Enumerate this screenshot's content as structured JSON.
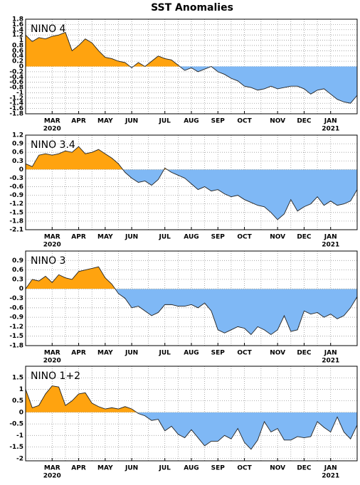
{
  "title": "SST Anomalies",
  "chart_data": [
    {
      "type": "area",
      "label": "NINO 4",
      "categories": [
        null,
        null,
        null,
        null,
        "MAR",
        null,
        null,
        null,
        "APR",
        null,
        null,
        null,
        "MAY",
        null,
        null,
        null,
        "JUN",
        null,
        null,
        null,
        null,
        "JUL",
        null,
        null,
        null,
        "AUG",
        null,
        null,
        null,
        "SEP",
        null,
        null,
        null,
        "OCT",
        null,
        null,
        null,
        null,
        "NOV",
        null,
        null,
        null,
        "DEC",
        null,
        null,
        null,
        "JAN",
        null,
        null,
        null,
        null
      ],
      "category_years": [
        null,
        null,
        null,
        null,
        "2020",
        null,
        null,
        null,
        null,
        null,
        null,
        null,
        null,
        null,
        null,
        null,
        null,
        null,
        null,
        null,
        null,
        null,
        null,
        null,
        null,
        null,
        null,
        null,
        null,
        null,
        null,
        null,
        null,
        null,
        null,
        null,
        null,
        null,
        null,
        null,
        null,
        null,
        null,
        null,
        null,
        null,
        "2021",
        null,
        null,
        null,
        null
      ],
      "values": [
        1.2,
        0.95,
        1.1,
        1.05,
        1.15,
        1.2,
        1.3,
        0.6,
        0.8,
        1.05,
        0.9,
        0.6,
        0.35,
        0.3,
        0.2,
        0.15,
        -0.05,
        0.15,
        0.0,
        0.2,
        0.4,
        0.3,
        0.25,
        0.05,
        -0.15,
        -0.05,
        -0.2,
        -0.1,
        0.0,
        -0.2,
        -0.3,
        -0.45,
        -0.55,
        -0.75,
        -0.8,
        -0.9,
        -0.85,
        -0.75,
        -0.85,
        -0.8,
        -0.75,
        -0.75,
        -0.85,
        -1.05,
        -0.9,
        -0.85,
        -1.05,
        -1.25,
        -1.35,
        -1.4,
        -1.1
      ],
      "ylim": [
        -1.8,
        1.8
      ],
      "yticks": [
        -1.8,
        -1.6,
        -1.4,
        -1.2,
        -1,
        -0.8,
        -0.6,
        -0.4,
        -0.2,
        0,
        0.2,
        0.4,
        0.6,
        0.8,
        1,
        1.2,
        1.4,
        1.6,
        1.8
      ],
      "positive_color": "#ffa30f",
      "negative_color": "#7fb8f5",
      "grid": true
    },
    {
      "type": "area",
      "label": "NINO 3.4",
      "categories": [
        null,
        null,
        null,
        null,
        "MAR",
        null,
        null,
        null,
        "APR",
        null,
        null,
        null,
        "MAY",
        null,
        null,
        null,
        "JUN",
        null,
        null,
        null,
        null,
        "JUL",
        null,
        null,
        null,
        "AUG",
        null,
        null,
        null,
        "SEP",
        null,
        null,
        null,
        "OCT",
        null,
        null,
        null,
        null,
        "NOV",
        null,
        null,
        null,
        "DEC",
        null,
        null,
        null,
        "JAN",
        null,
        null,
        null,
        null
      ],
      "category_years": [
        null,
        null,
        null,
        null,
        "2020",
        null,
        null,
        null,
        null,
        null,
        null,
        null,
        null,
        null,
        null,
        null,
        null,
        null,
        null,
        null,
        null,
        null,
        null,
        null,
        null,
        null,
        null,
        null,
        null,
        null,
        null,
        null,
        null,
        null,
        null,
        null,
        null,
        null,
        null,
        null,
        null,
        null,
        null,
        null,
        null,
        null,
        "2021",
        null,
        null,
        null,
        null
      ],
      "values": [
        0.2,
        0.1,
        0.5,
        0.55,
        0.5,
        0.55,
        0.65,
        0.6,
        0.8,
        0.55,
        0.6,
        0.7,
        0.55,
        0.4,
        0.2,
        -0.1,
        -0.3,
        -0.45,
        -0.4,
        -0.55,
        -0.35,
        0.05,
        -0.1,
        -0.2,
        -0.3,
        -0.5,
        -0.7,
        -0.6,
        -0.75,
        -0.7,
        -0.85,
        -0.95,
        -0.9,
        -1.05,
        -1.15,
        -1.25,
        -1.3,
        -1.5,
        -1.75,
        -1.55,
        -1.05,
        -1.45,
        -1.3,
        -1.2,
        -0.95,
        -1.25,
        -1.1,
        -1.25,
        -1.2,
        -1.1,
        -0.7
      ],
      "ylim": [
        -2.1,
        1.2
      ],
      "yticks": [
        -2.1,
        -1.8,
        -1.5,
        -1.2,
        -0.9,
        -0.6,
        -0.3,
        0,
        0.3,
        0.6,
        0.9,
        1.2
      ],
      "positive_color": "#ffa30f",
      "negative_color": "#7fb8f5",
      "grid": true
    },
    {
      "type": "area",
      "label": "NINO 3",
      "categories": [
        null,
        null,
        null,
        null,
        "MAR",
        null,
        null,
        null,
        "APR",
        null,
        null,
        null,
        "MAY",
        null,
        null,
        null,
        "JUN",
        null,
        null,
        null,
        null,
        "JUL",
        null,
        null,
        null,
        "AUG",
        null,
        null,
        null,
        "SEP",
        null,
        null,
        null,
        "OCT",
        null,
        null,
        null,
        null,
        "NOV",
        null,
        null,
        null,
        "DEC",
        null,
        null,
        null,
        "JAN",
        null,
        null,
        null,
        null
      ],
      "category_years": [
        null,
        null,
        null,
        null,
        "2020",
        null,
        null,
        null,
        null,
        null,
        null,
        null,
        null,
        null,
        null,
        null,
        null,
        null,
        null,
        null,
        null,
        null,
        null,
        null,
        null,
        null,
        null,
        null,
        null,
        null,
        null,
        null,
        null,
        null,
        null,
        null,
        null,
        null,
        null,
        null,
        null,
        null,
        null,
        null,
        null,
        null,
        "2021",
        null,
        null,
        null,
        null
      ],
      "values": [
        0.0,
        0.3,
        0.25,
        0.4,
        0.2,
        0.45,
        0.35,
        0.3,
        0.55,
        0.6,
        0.65,
        0.7,
        0.35,
        0.15,
        -0.15,
        -0.3,
        -0.6,
        -0.55,
        -0.7,
        -0.85,
        -0.75,
        -0.5,
        -0.5,
        -0.55,
        -0.55,
        -0.5,
        -0.6,
        -0.45,
        -0.7,
        -1.3,
        -1.4,
        -1.3,
        -1.2,
        -1.25,
        -1.45,
        -1.2,
        -1.3,
        -1.45,
        -1.3,
        -0.85,
        -1.35,
        -1.3,
        -0.7,
        -0.8,
        -0.75,
        -0.9,
        -0.8,
        -0.95,
        -0.85,
        -0.6,
        -0.25
      ],
      "ylim": [
        -1.8,
        1.2
      ],
      "yticks": [
        -1.8,
        -1.5,
        -1.2,
        -0.9,
        -0.6,
        -0.3,
        0,
        0.3,
        0.6,
        0.9
      ],
      "positive_color": "#ffa30f",
      "negative_color": "#7fb8f5",
      "grid": true
    },
    {
      "type": "area",
      "label": "NINO 1+2",
      "categories": [
        null,
        null,
        null,
        null,
        "MAR",
        null,
        null,
        null,
        "APR",
        null,
        null,
        null,
        "MAY",
        null,
        null,
        null,
        "JUN",
        null,
        null,
        null,
        null,
        "JUL",
        null,
        null,
        null,
        "AUG",
        null,
        null,
        null,
        "SEP",
        null,
        null,
        null,
        "OCT",
        null,
        null,
        null,
        null,
        "NOV",
        null,
        null,
        null,
        "DEC",
        null,
        null,
        null,
        "JAN",
        null,
        null,
        null,
        null
      ],
      "category_years": [
        null,
        null,
        null,
        null,
        "2020",
        null,
        null,
        null,
        null,
        null,
        null,
        null,
        null,
        null,
        null,
        null,
        null,
        null,
        null,
        null,
        null,
        null,
        null,
        null,
        null,
        null,
        null,
        null,
        null,
        null,
        null,
        null,
        null,
        null,
        null,
        null,
        null,
        null,
        null,
        null,
        null,
        null,
        null,
        null,
        null,
        null,
        "2021",
        null,
        null,
        null,
        null
      ],
      "values": [
        1.0,
        0.2,
        0.3,
        0.8,
        1.15,
        1.1,
        0.3,
        0.5,
        0.8,
        0.85,
        0.4,
        0.25,
        0.15,
        0.2,
        0.15,
        0.25,
        0.15,
        -0.05,
        -0.15,
        -0.35,
        -0.3,
        -0.8,
        -0.6,
        -0.95,
        -1.1,
        -0.75,
        -1.1,
        -1.45,
        -1.25,
        -1.25,
        -1.0,
        -1.15,
        -0.7,
        -1.3,
        -1.6,
        -1.2,
        -0.4,
        -0.85,
        -0.7,
        -1.2,
        -1.2,
        -1.05,
        -1.1,
        -1.05,
        -0.4,
        -0.65,
        -0.85,
        -0.2,
        -0.85,
        -1.15,
        -0.55
      ],
      "ylim": [
        -2.1,
        2.0
      ],
      "yticks": [
        -2,
        -1.5,
        -1,
        -0.5,
        0,
        0.5,
        1,
        1.5
      ],
      "positive_color": "#ffa30f",
      "negative_color": "#7fb8f5",
      "grid": true
    }
  ]
}
